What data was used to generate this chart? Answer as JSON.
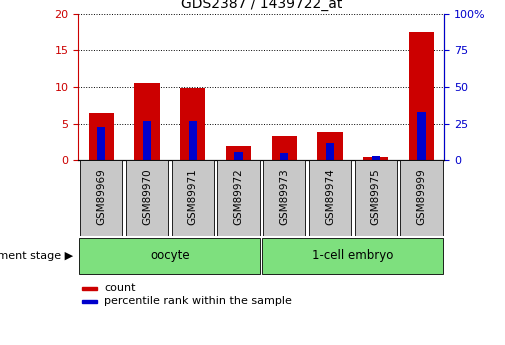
{
  "title": "GDS2387 / 1439722_at",
  "categories": [
    "GSM89969",
    "GSM89970",
    "GSM89971",
    "GSM89972",
    "GSM89973",
    "GSM89974",
    "GSM89975",
    "GSM89999"
  ],
  "count_values": [
    6.5,
    10.6,
    9.9,
    1.9,
    3.3,
    3.9,
    0.5,
    17.5
  ],
  "percentile_values": [
    23,
    27,
    27,
    6,
    5,
    12,
    3,
    33
  ],
  "groups": [
    {
      "label": "oocyte",
      "indices": [
        0,
        1,
        2,
        3
      ],
      "color": "#7EE07E"
    },
    {
      "label": "1-cell embryo",
      "indices": [
        4,
        5,
        6,
        7
      ],
      "color": "#7EE07E"
    }
  ],
  "left_ylim": [
    0,
    20
  ],
  "right_ylim": [
    0,
    100
  ],
  "left_yticks": [
    0,
    5,
    10,
    15,
    20
  ],
  "right_yticks": [
    0,
    25,
    50,
    75,
    100
  ],
  "right_yticklabels": [
    "0",
    "25",
    "50",
    "75",
    "100%"
  ],
  "left_tick_color": "#cc0000",
  "right_tick_color": "#0000cc",
  "bar_color_red": "#cc0000",
  "bar_color_blue": "#0000cc",
  "tick_label_area_color": "#c8c8c8",
  "dev_stage_label": "development stage",
  "legend_count": "count",
  "legend_percentile": "percentile rank within the sample"
}
